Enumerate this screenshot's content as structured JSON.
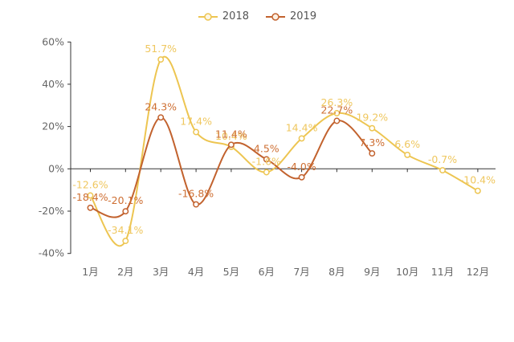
{
  "legend": {
    "items": [
      {
        "label": "2018",
        "color": "#EDC551"
      },
      {
        "label": "2019",
        "color": "#C2622E"
      }
    ]
  },
  "chart_data": {
    "type": "line",
    "smooth": true,
    "legend_position": "top",
    "background": "#ffffff",
    "axis_text_color": "#666666",
    "axis_line_color": "#333333",
    "x_categories": [
      "1月",
      "2月",
      "3月",
      "4月",
      "5月",
      "6月",
      "7月",
      "8月",
      "9月",
      "10月",
      "11月",
      "12月"
    ],
    "ylim": [
      -40,
      60
    ],
    "y_ticks": [
      {
        "value": 60,
        "label": "60%"
      },
      {
        "value": 40,
        "label": "40%"
      },
      {
        "value": 20,
        "label": "20%"
      },
      {
        "value": 0,
        "label": "0%"
      },
      {
        "value": -20,
        "label": "-20%"
      },
      {
        "value": -40,
        "label": "-40%"
      }
    ],
    "series": [
      {
        "name": "2018",
        "color": "#EDC551",
        "label_color": "#EFC75F",
        "values": [
          -12.6,
          -34.1,
          51.7,
          17.4,
          10.4,
          -1.6,
          14.4,
          26.3,
          19.2,
          6.6,
          -0.7,
          -10.4
        ],
        "labels": [
          "-12.6%",
          "-34.1%",
          "51.7%",
          "17.4%",
          "10.4%",
          "-1.6%",
          "14.4%",
          "26.3%",
          "19.2%",
          "6.6%",
          "-0.7%",
          "-10.4%"
        ]
      },
      {
        "name": "2019",
        "color": "#C2622E",
        "label_color": "#CE6F33",
        "values": [
          -18.4,
          -20.1,
          24.3,
          -16.8,
          11.4,
          4.5,
          -4.0,
          22.7,
          7.3
        ],
        "labels": [
          "-18.4%",
          "-20.1%",
          "24.3%",
          "-16.8%",
          "11.4%",
          "4.5%",
          "-4.0%",
          "22.7%",
          "7.3%"
        ]
      }
    ]
  }
}
